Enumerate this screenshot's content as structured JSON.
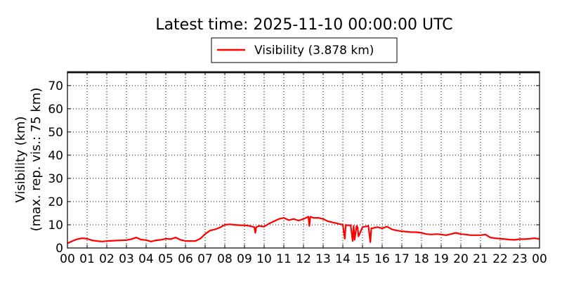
{
  "chart_data": {
    "type": "line",
    "title": "Latest time: 2025-11-10 00:00:00 UTC",
    "ylabel_line1": "Visibility (km)",
    "ylabel_line2": "(max. rep. vis.: 75 km)",
    "xlabel": "",
    "ylim": [
      0,
      76
    ],
    "xlim": [
      0,
      24
    ],
    "grid": true,
    "legend_position": "top-center",
    "x_tick_labels": [
      "00",
      "01",
      "02",
      "03",
      "04",
      "05",
      "06",
      "07",
      "08",
      "09",
      "10",
      "11",
      "12",
      "13",
      "14",
      "15",
      "16",
      "17",
      "18",
      "19",
      "20",
      "21",
      "22",
      "23",
      "00"
    ],
    "y_ticks": [
      0,
      10,
      20,
      30,
      40,
      50,
      60,
      70
    ],
    "y_tick_labels": [
      "0",
      "10",
      "20",
      "30",
      "40",
      "50",
      "60",
      "70"
    ],
    "series": [
      {
        "name": "Visibility (3.878 km)",
        "color": "#ff0000",
        "x": [
          0.0,
          0.25,
          0.5,
          0.75,
          1.0,
          1.25,
          1.5,
          1.75,
          2.0,
          2.5,
          3.0,
          3.25,
          3.5,
          3.75,
          4.0,
          4.25,
          4.5,
          4.75,
          5.0,
          5.25,
          5.5,
          5.75,
          6.0,
          6.25,
          6.5,
          6.75,
          7.0,
          7.25,
          7.5,
          7.75,
          8.0,
          8.25,
          8.5,
          8.75,
          9.0,
          9.25,
          9.5,
          9.55,
          9.6,
          9.75,
          10.0,
          10.25,
          10.5,
          10.75,
          11.0,
          11.25,
          11.5,
          11.75,
          12.0,
          12.25,
          12.3,
          12.35,
          12.5,
          12.75,
          13.0,
          13.25,
          13.5,
          13.75,
          14.0,
          14.1,
          14.15,
          14.2,
          14.4,
          14.5,
          14.55,
          14.6,
          14.7,
          14.75,
          14.8,
          15.0,
          15.3,
          15.4,
          15.45,
          15.5,
          15.75,
          16.0,
          16.25,
          16.5,
          16.75,
          17.0,
          17.25,
          17.5,
          17.75,
          18.0,
          18.25,
          18.5,
          18.75,
          19.0,
          19.25,
          19.5,
          19.75,
          20.0,
          20.25,
          20.5,
          20.75,
          21.0,
          21.25,
          21.5,
          21.75,
          22.0,
          22.25,
          22.5,
          22.75,
          23.0,
          23.25,
          23.5,
          23.75,
          24.0
        ],
        "values": [
          2.0,
          3.0,
          3.8,
          4.2,
          4.0,
          3.3,
          3.0,
          2.8,
          3.0,
          3.2,
          3.4,
          3.8,
          4.5,
          3.6,
          3.4,
          2.8,
          3.3,
          3.5,
          4.0,
          3.8,
          4.5,
          3.5,
          3.0,
          3.0,
          3.0,
          4.0,
          6.0,
          7.5,
          8.0,
          8.8,
          10.0,
          10.2,
          10.0,
          9.8,
          9.8,
          9.5,
          9.0,
          6.5,
          9.0,
          9.5,
          9.2,
          10.5,
          11.5,
          12.5,
          13.0,
          12.0,
          12.5,
          11.8,
          12.5,
          13.5,
          9.5,
          13.5,
          13.0,
          13.0,
          12.5,
          11.5,
          11.0,
          10.5,
          10.0,
          4.0,
          10.0,
          9.8,
          9.8,
          3.0,
          9.5,
          3.5,
          9.5,
          9.0,
          5.0,
          9.0,
          9.5,
          2.5,
          8.5,
          8.5,
          9.0,
          8.5,
          9.2,
          8.0,
          7.5,
          7.2,
          7.0,
          6.8,
          6.8,
          6.5,
          6.0,
          5.8,
          6.0,
          5.8,
          5.5,
          6.0,
          6.5,
          6.0,
          5.8,
          5.5,
          5.5,
          5.5,
          5.8,
          4.5,
          4.2,
          4.0,
          3.8,
          3.6,
          3.5,
          3.8,
          3.8,
          4.0,
          4.2,
          3.9
        ]
      }
    ]
  }
}
